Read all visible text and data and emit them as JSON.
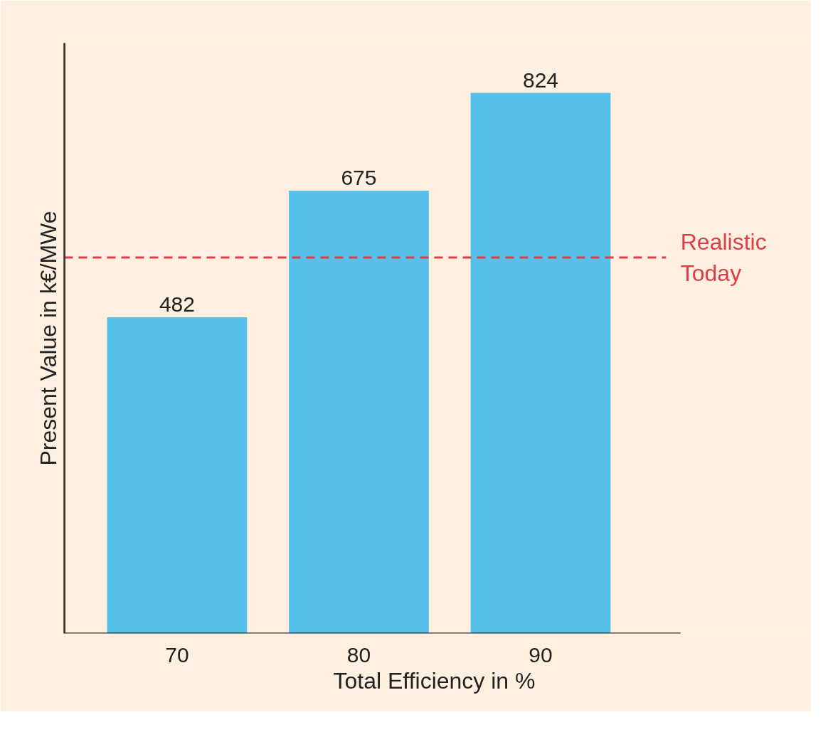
{
  "chart_data": {
    "type": "bar",
    "xlabel": "Total Efficiency in %",
    "ylabel": "Present Value in k€/MWe",
    "categories": [
      "70",
      "80",
      "90"
    ],
    "values": [
      482,
      675,
      824
    ],
    "color": "#56c1e8",
    "data_labels": true,
    "ylim": [
      0,
      900
    ],
    "tick_labels": "x",
    "grid": false,
    "ref_lines": [
      {
        "axis": "y",
        "value": 573,
        "label": "Realistic\nToday",
        "color": "#e03c46",
        "line_style": "dashed"
      }
    ]
  }
}
